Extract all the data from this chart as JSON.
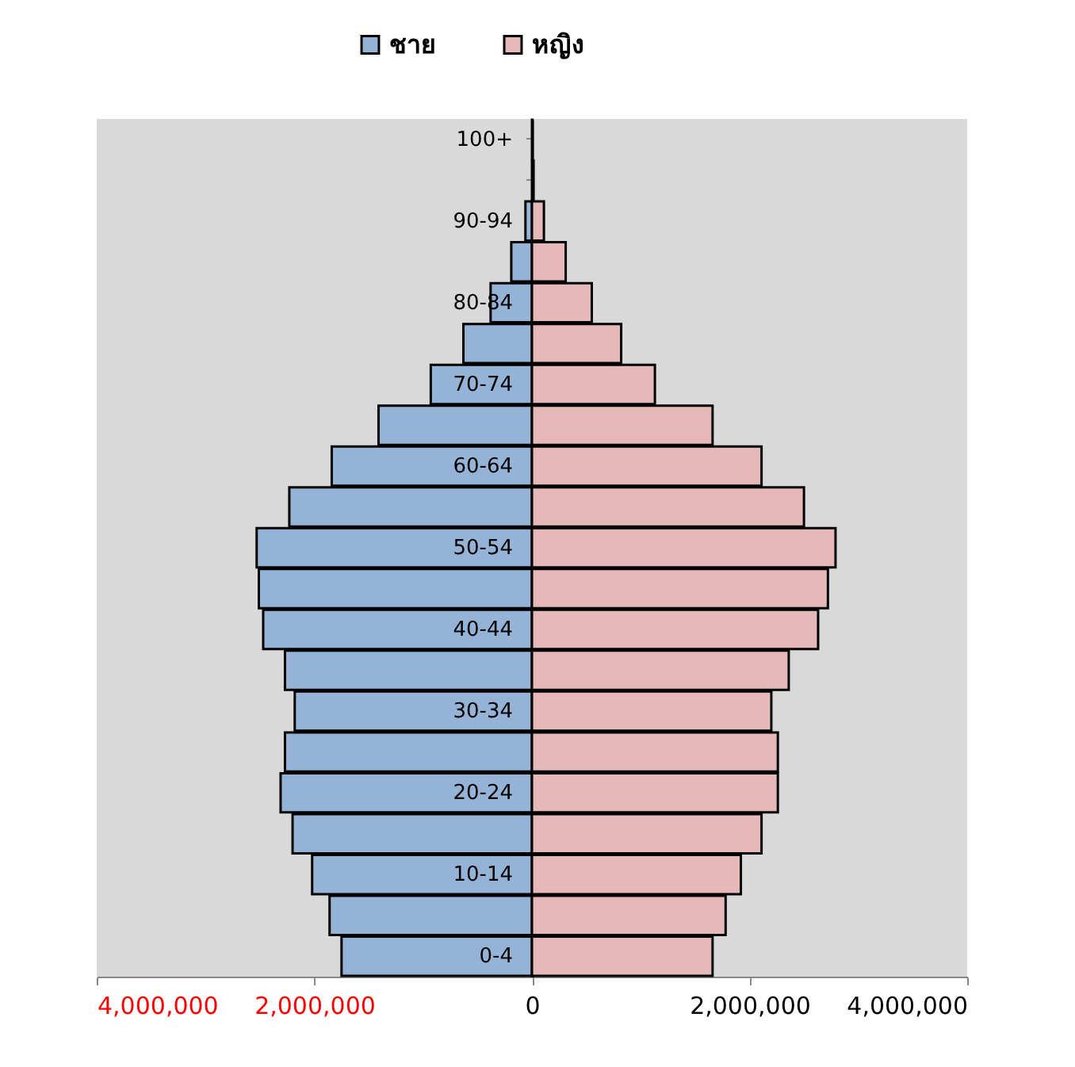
{
  "chart_data": {
    "type": "bar",
    "orientation": "horizontal",
    "categories": [
      "100+",
      null,
      "90-94",
      null,
      "80-84",
      null,
      "70-74",
      null,
      "60-64",
      null,
      "50-54",
      null,
      "40-44",
      null,
      "30-34",
      null,
      "20-24",
      null,
      "10-14",
      null,
      "0-4"
    ],
    "series": [
      {
        "name": "ชาย",
        "color": "#95b3d7",
        "values": [
          null,
          null,
          -60000,
          -190000,
          -380000,
          -630000,
          -930000,
          -1410000,
          -1840000,
          -2230000,
          -2530000,
          -2510000,
          -2470000,
          -2270000,
          -2180000,
          -2270000,
          -2310000,
          -2200000,
          -2020000,
          -1860000,
          -1750000
        ]
      },
      {
        "name": "หญิง",
        "color": "#e6b9b8",
        "values": [
          5000,
          15000,
          110000,
          310000,
          550000,
          820000,
          1130000,
          1660000,
          2110000,
          2500000,
          2790000,
          2720000,
          2630000,
          2360000,
          2200000,
          2260000,
          2260000,
          2110000,
          1920000,
          1780000,
          1660000
        ]
      }
    ],
    "xlim": [
      -4000000,
      4000000
    ],
    "xticks": [
      {
        "value": -4000000,
        "label": "4,000,000"
      },
      {
        "value": -2000000,
        "label": "2,000,000"
      },
      0,
      {
        "value": 2000000,
        "label": "2,000,000"
      },
      {
        "value": 4000000,
        "label": "4,000,000"
      }
    ],
    "stacked": true,
    "legend": "top",
    "grid": false
  }
}
